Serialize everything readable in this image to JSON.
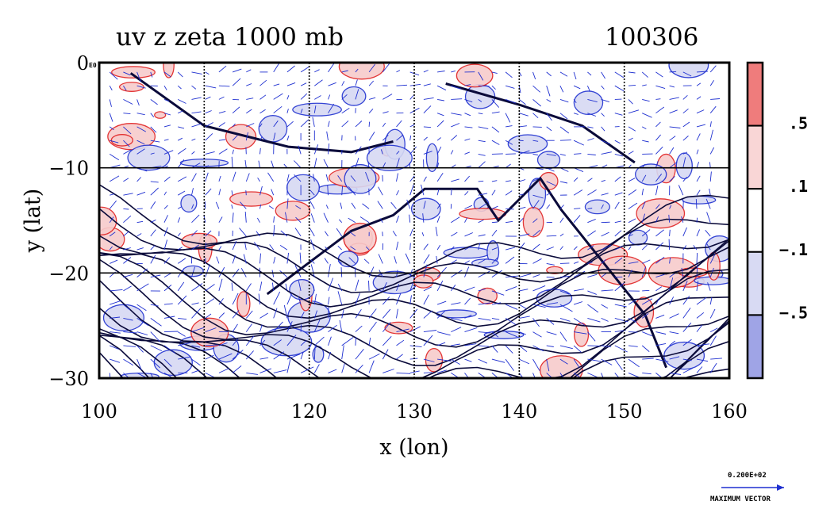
{
  "chart_data": {
    "type": "heatmap",
    "title": "uv z zeta 1000 mb",
    "date_label": "100306",
    "xlabel": "x (lon)",
    "ylabel": "y (lat)",
    "xlim": [
      100,
      160
    ],
    "ylim": [
      -30,
      0
    ],
    "x_ticks": [
      100,
      110,
      120,
      130,
      140,
      150,
      160
    ],
    "x_tick_labels": [
      "100",
      "110",
      "120",
      "130",
      "140",
      "150",
      "160"
    ],
    "y_ticks": [
      -30,
      -20,
      -10,
      0
    ],
    "y_tick_labels": [
      "−30",
      "−20",
      "−10",
      "0"
    ],
    "y_top_suffix": "E0",
    "grid": true,
    "colorbar": {
      "levels": [
        ".5",
        ".1",
        "−.1",
        "−.5"
      ],
      "colors": [
        "#ef7c7c",
        "#f9d6d6",
        "#ffffff",
        "#d8daf3",
        "#9fa4e6"
      ]
    },
    "reference_vector": {
      "value_label": "0.200E+02",
      "caption": "MAXIMUM VECTOR",
      "color": "#1e2fd0"
    },
    "colors": {
      "positive_fill": "#f7cccc",
      "negative_fill": "#d6d9f3",
      "positive_contour": "#e02020",
      "negative_contour": "#1e2fd0",
      "height_contour": "#0a0a3a",
      "vector": "#1e2fd0"
    }
  }
}
